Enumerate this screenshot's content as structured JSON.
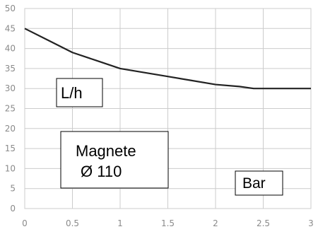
{
  "chart_data": {
    "type": "line",
    "title": "",
    "xlabel": "Bar",
    "ylabel": "L/h",
    "annotation_lines": [
      "Magnete",
      "Ø 110"
    ],
    "xlim": [
      0,
      3
    ],
    "ylim": [
      0,
      50
    ],
    "x_ticks": [
      "0",
      "0.5",
      "1",
      "1.5",
      "2",
      "2.5",
      "3"
    ],
    "y_ticks": [
      "0",
      "5",
      "10",
      "15",
      "20",
      "25",
      "30",
      "35",
      "40",
      "45",
      "50"
    ],
    "grid": true,
    "series": [
      {
        "x": [
          0,
          0.25,
          0.5,
          0.75,
          1.0,
          1.25,
          1.5,
          1.75,
          2.0,
          2.25,
          2.4,
          2.5,
          2.75,
          3.0
        ],
        "values": [
          45,
          42,
          39,
          37,
          35,
          34,
          33,
          32,
          31,
          30.5,
          30,
          30,
          30,
          30
        ],
        "color": "#222222"
      }
    ]
  }
}
